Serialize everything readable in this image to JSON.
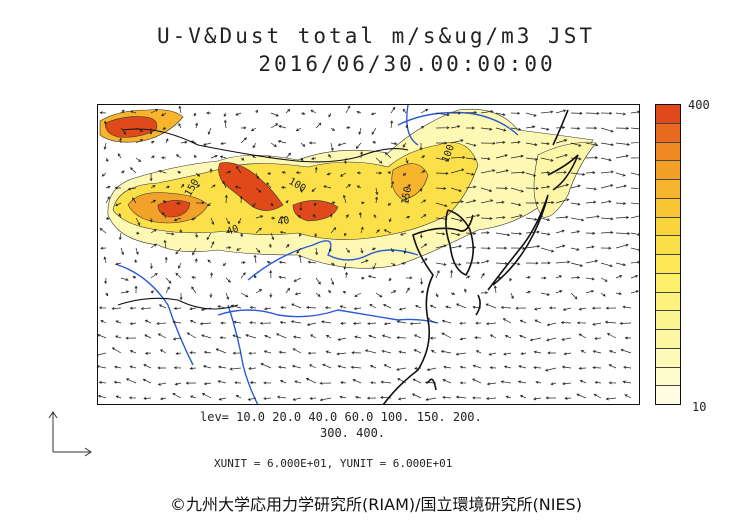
{
  "title": {
    "line1": "U-V&Dust total m/s&ug/m3 JST",
    "line2": "2016/06/30.00:00:00"
  },
  "map": {
    "contour_labels": [
      "150",
      "40",
      "100",
      "150",
      "40",
      "100"
    ]
  },
  "legend": {
    "max_label": "400",
    "min_label": "10",
    "colors": [
      "#e04a1a",
      "#e86a1e",
      "#ef8a22",
      "#f3a026",
      "#f6b52c",
      "#f8c632",
      "#fad43a",
      "#fbdf46",
      "#fce955",
      "#fdf06a",
      "#fdf37c",
      "#fdf58f",
      "#fdf7a3",
      "#fdf9b7",
      "#fefbcc",
      "#fefde2"
    ]
  },
  "levels": {
    "line1": "lev= 10.0 20.0 40.0 60.0 100. 150. 200.",
    "line2": "300. 400."
  },
  "units": "XUNIT = 6.000E+01, YUNIT = 6.000E+01",
  "copyright": "©九州大学応用力学研究所(RIAM)/国立環境研究所(NIES)"
}
